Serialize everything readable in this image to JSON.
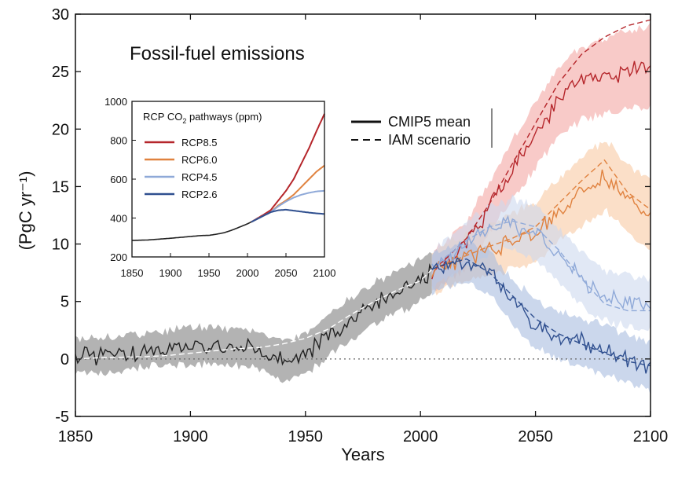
{
  "chart_data": [
    {
      "type": "line",
      "title": "Fossil-fuel emissions",
      "xlabel": "Years",
      "ylabel": "(PgC yr⁻¹)",
      "xlim": [
        1850,
        2100
      ],
      "ylim": [
        -5,
        30
      ],
      "xticks": [
        1850,
        1900,
        1950,
        2000,
        2050,
        2100
      ],
      "yticks": [
        -5,
        0,
        5,
        10,
        15,
        20,
        25,
        30
      ],
      "zero_line": "dotted",
      "legend": {
        "placement": "top-center",
        "entries": [
          {
            "label": "CMIP5 mean",
            "style": "solid"
          },
          {
            "label": "IAM scenario",
            "style": "dashed"
          }
        ]
      },
      "historical": {
        "color": "#222222",
        "band_color": "#9a9a9a",
        "x": [
          1850,
          1860,
          1870,
          1880,
          1890,
          1900,
          1910,
          1920,
          1930,
          1940,
          1950,
          1960,
          1970,
          1980,
          1990,
          2000,
          2005
        ],
        "cmip5_mean": [
          0.3,
          0.3,
          0.5,
          0.8,
          1.0,
          1.0,
          1.2,
          1.0,
          0.8,
          -0.3,
          0.5,
          2.0,
          3.5,
          4.8,
          5.8,
          6.8,
          7.5
        ],
        "iam": [
          0.0,
          0.1,
          0.15,
          0.2,
          0.3,
          0.5,
          0.7,
          0.9,
          1.0,
          1.3,
          1.8,
          2.6,
          3.9,
          5.0,
          6.0,
          6.8,
          7.8
        ],
        "band_halfwidth": [
          1.5,
          1.5,
          1.5,
          1.5,
          1.5,
          1.6,
          1.6,
          1.6,
          1.7,
          1.8,
          1.8,
          1.8,
          1.8,
          1.8,
          1.8,
          1.8,
          1.8
        ]
      },
      "x": [
        2005,
        2010,
        2020,
        2030,
        2040,
        2050,
        2060,
        2070,
        2080,
        2090,
        2100
      ],
      "series": [
        {
          "name": "RCP8.5",
          "color": "#b5262b",
          "band_color": "#f4a7a3",
          "cmip5_mean": [
            7.5,
            8.3,
            10.0,
            13.2,
            16.5,
            19.5,
            22.5,
            24.0,
            24.5,
            25.2,
            25.4
          ],
          "iam": [
            7.8,
            8.5,
            10.5,
            13.5,
            17.0,
            20.5,
            24.0,
            26.5,
            28.0,
            29.0,
            29.5
          ],
          "band_halfwidth": [
            1.5,
            1.8,
            2.0,
            2.3,
            2.6,
            2.8,
            3.0,
            3.2,
            3.3,
            3.4,
            3.5
          ]
        },
        {
          "name": "RCP6.0",
          "color": "#e0823f",
          "band_color": "#f8c9a3",
          "cmip5_mean": [
            7.5,
            8.0,
            8.8,
            9.5,
            10.2,
            11.0,
            13.0,
            14.5,
            16.0,
            14.0,
            12.5
          ],
          "iam": [
            7.8,
            8.2,
            9.0,
            9.8,
            10.5,
            11.5,
            13.5,
            15.5,
            17.3,
            14.5,
            13.0
          ],
          "band_halfwidth": [
            1.6,
            1.9,
            2.0,
            2.2,
            2.4,
            2.6,
            2.8,
            3.0,
            3.1,
            3.0,
            3.0
          ]
        },
        {
          "name": "RCP4.5",
          "color": "#8fa9d8",
          "band_color": "#cdd9ef",
          "cmip5_mean": [
            7.5,
            8.5,
            10.0,
            11.3,
            11.7,
            11.0,
            9.0,
            7.0,
            5.5,
            5.0,
            4.8
          ],
          "iam": [
            7.8,
            8.7,
            10.3,
            11.5,
            12.0,
            11.5,
            9.5,
            7.0,
            4.8,
            4.2,
            4.2
          ],
          "band_halfwidth": [
            1.5,
            1.7,
            1.9,
            2.1,
            2.2,
            2.3,
            2.3,
            2.3,
            2.2,
            2.2,
            2.2
          ]
        },
        {
          "name": "RCP2.6",
          "color": "#2f4f8f",
          "band_color": "#a9bde0",
          "cmip5_mean": [
            7.5,
            8.0,
            8.5,
            7.5,
            5.0,
            3.0,
            2.0,
            1.5,
            0.8,
            0.0,
            -0.8
          ],
          "iam": [
            7.8,
            8.2,
            8.7,
            7.5,
            5.5,
            3.5,
            2.2,
            1.3,
            0.5,
            -0.2,
            -0.6
          ],
          "band_halfwidth": [
            1.5,
            1.6,
            1.8,
            1.9,
            2.0,
            2.1,
            2.1,
            2.1,
            2.1,
            2.1,
            2.2
          ]
        }
      ]
    },
    {
      "type": "line",
      "title": "RCP CO₂ pathways (ppm)",
      "title_main": "RCP CO",
      "title_sub": "2",
      "title_tail": " pathways (ppm)",
      "placement": "inset-upper-left",
      "xlim": [
        1850,
        2100
      ],
      "ylim": [
        200,
        1000
      ],
      "xticks": [
        1850,
        1900,
        1950,
        2000,
        2050,
        2100
      ],
      "yticks": [
        200,
        400,
        600,
        800,
        1000
      ],
      "historical": {
        "color": "#222222",
        "x": [
          1850,
          1870,
          1900,
          1920,
          1940,
          1950,
          1960,
          1970,
          1980,
          1990,
          2000,
          2005
        ],
        "values": [
          285,
          287,
          296,
          303,
          310,
          311,
          317,
          325,
          338,
          354,
          370,
          380
        ]
      },
      "x": [
        2005,
        2020,
        2030,
        2040,
        2050,
        2060,
        2070,
        2080,
        2090,
        2100
      ],
      "series": [
        {
          "name": "RCP8.5",
          "color": "#b5262b",
          "values": [
            380,
            415,
            440,
            490,
            540,
            600,
            680,
            760,
            850,
            936
          ]
        },
        {
          "name": "RCP6.0",
          "color": "#e0823f",
          "values": [
            380,
            410,
            430,
            465,
            490,
            520,
            560,
            600,
            640,
            670
          ]
        },
        {
          "name": "RCP4.5",
          "color": "#8fa9d8",
          "values": [
            380,
            410,
            430,
            460,
            485,
            505,
            520,
            530,
            537,
            540
          ]
        },
        {
          "name": "RCP2.6",
          "color": "#2f4f8f",
          "values": [
            380,
            410,
            430,
            440,
            443,
            438,
            433,
            428,
            424,
            421
          ]
        }
      ]
    }
  ]
}
